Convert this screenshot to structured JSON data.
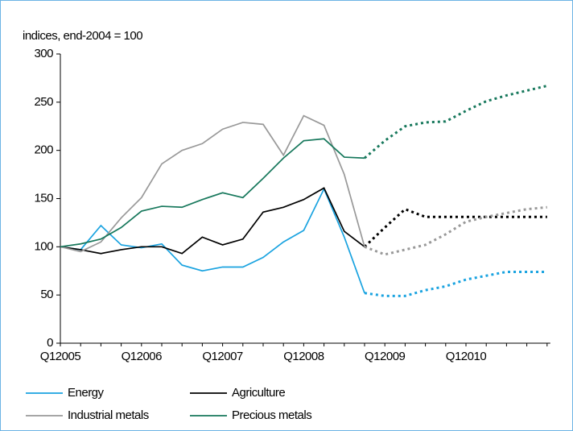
{
  "chart_data": {
    "type": "line",
    "y_axis_title": "indices, end-2004 = 100",
    "categories": [
      "Q12005",
      null,
      null,
      null,
      "Q12006",
      null,
      null,
      null,
      "Q12007",
      null,
      null,
      null,
      "Q12008",
      null,
      null,
      null,
      "Q12009",
      null,
      null,
      null,
      "Q12010",
      null,
      null,
      null,
      null
    ],
    "dotted_from_index": 15,
    "series": [
      {
        "name": "Energy",
        "color": "#1aa3e0",
        "values": [
          100,
          97,
          122,
          102,
          99,
          103,
          81,
          75,
          79,
          79,
          89,
          105,
          117,
          160,
          110,
          52,
          49,
          49,
          55,
          59,
          66,
          70,
          74,
          74,
          74
        ]
      },
      {
        "name": "Agriculture",
        "color": "#000000",
        "values": [
          100,
          97,
          93,
          97,
          100,
          100,
          93,
          110,
          102,
          108,
          136,
          141,
          149,
          161,
          116,
          100,
          120,
          139,
          131,
          131,
          131,
          131,
          131,
          131,
          131
        ]
      },
      {
        "name": "Industrial metals",
        "color": "#999999",
        "values": [
          100,
          95,
          105,
          130,
          151,
          186,
          200,
          207,
          222,
          229,
          227,
          195,
          236,
          226,
          175,
          100,
          92,
          97,
          102,
          113,
          126,
          131,
          135,
          139,
          141
        ]
      },
      {
        "name": "Precious metals",
        "color": "#17785c",
        "values": [
          100,
          103,
          108,
          120,
          137,
          142,
          141,
          149,
          156,
          151,
          171,
          192,
          210,
          212,
          193,
          192,
          210,
          225,
          229,
          230,
          241,
          251,
          257,
          262,
          267
        ]
      }
    ],
    "ylim": [
      0,
      300
    ],
    "yticks": [
      0,
      50,
      100,
      150,
      200,
      250,
      300
    ],
    "grid": false
  }
}
